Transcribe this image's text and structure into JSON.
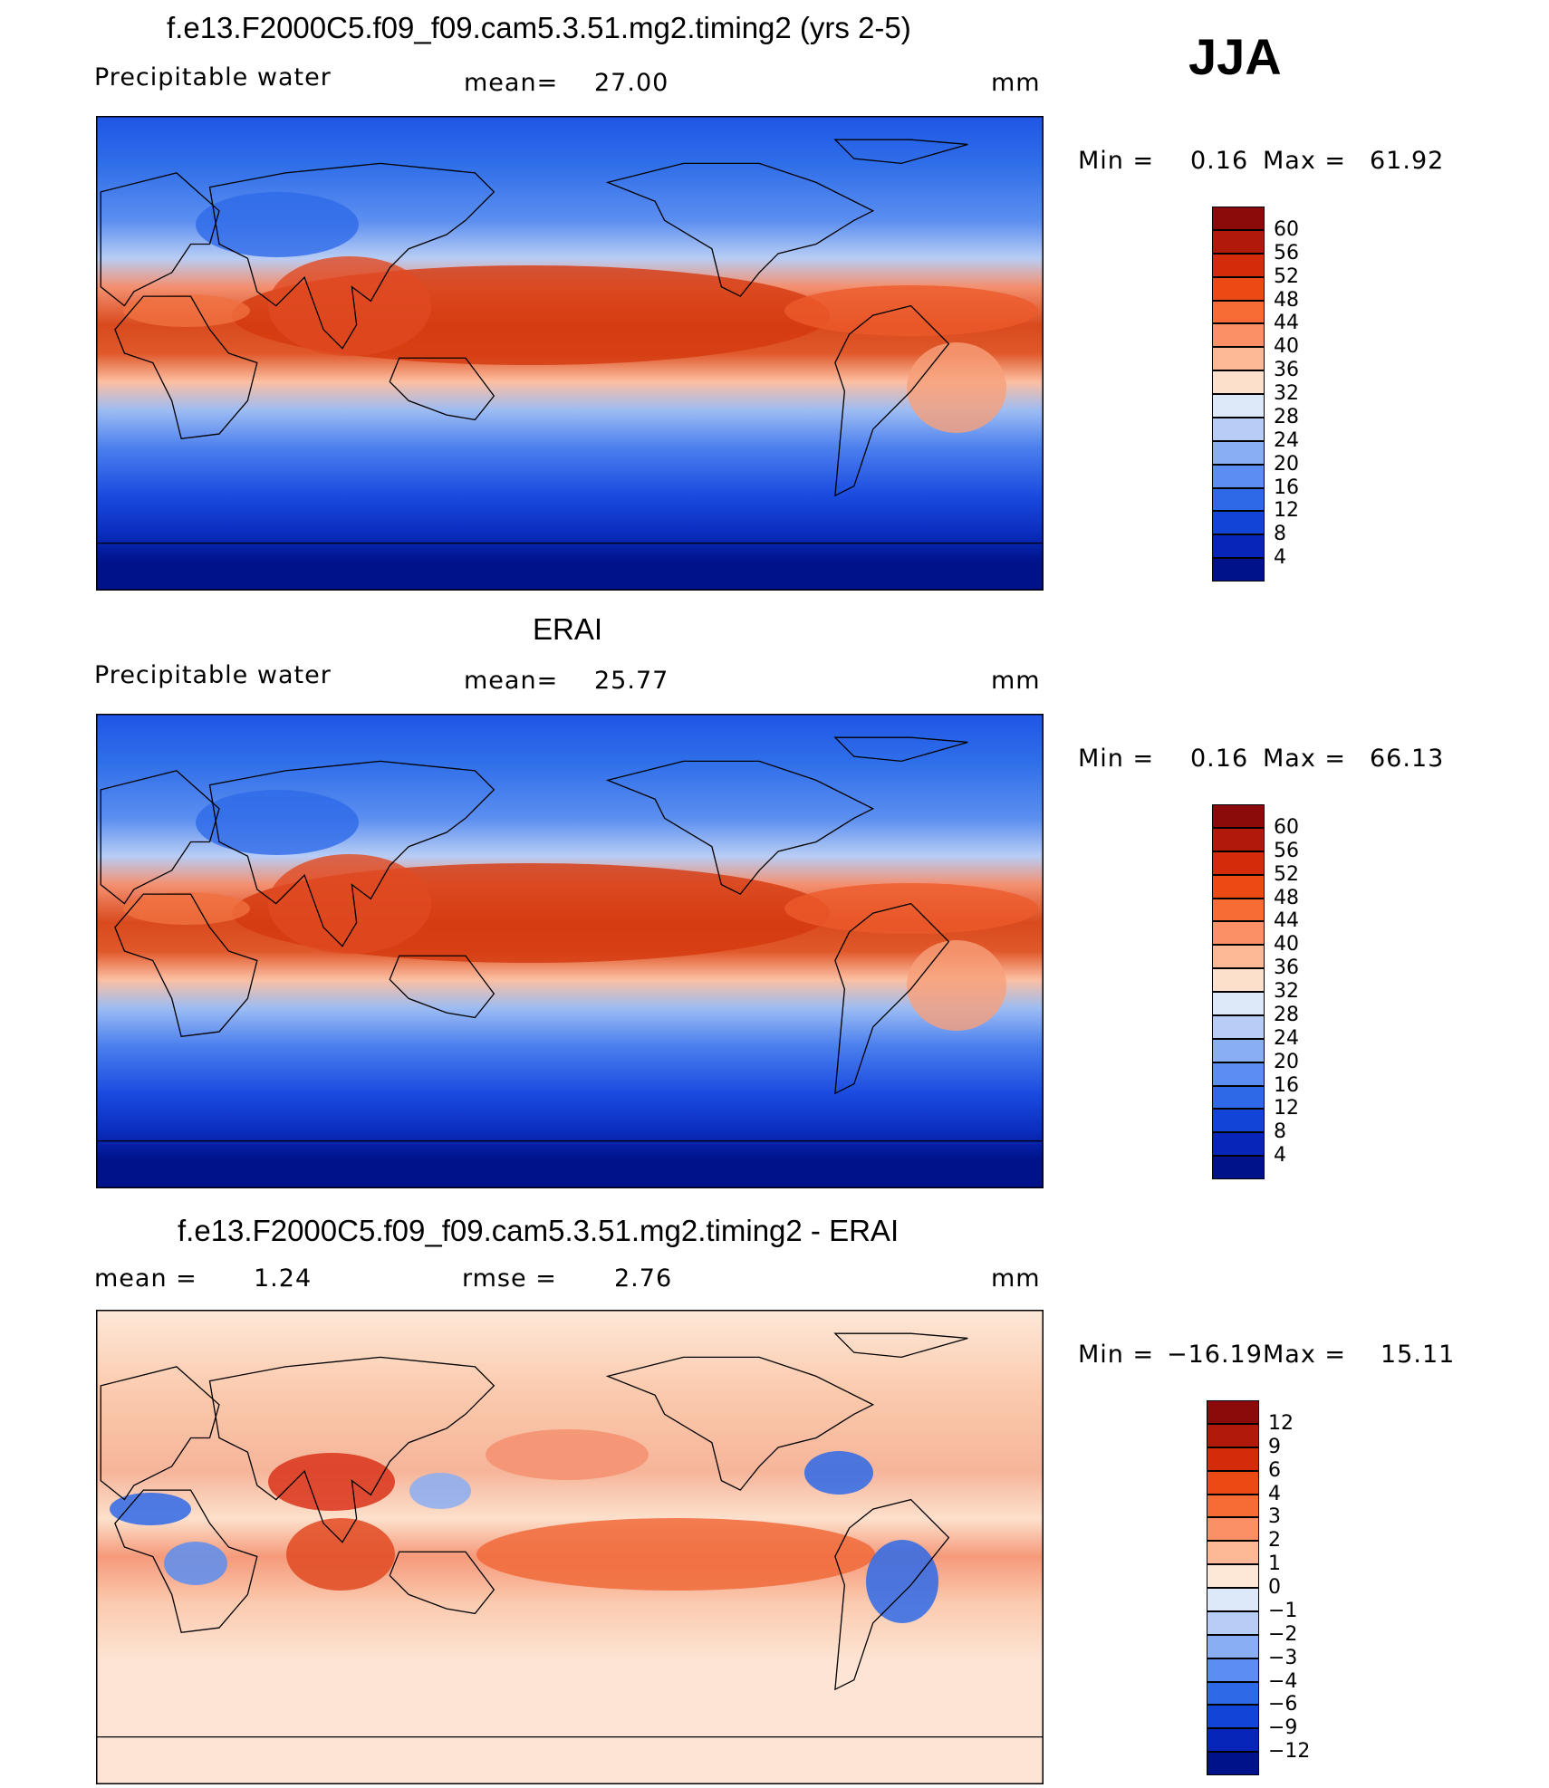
{
  "season": "JJA",
  "panels": [
    {
      "title": "f.e13.F2000C5.f09_f09.cam5.3.51.mg2.timing2 (yrs 2-5)",
      "left_label": "Precipitable  water",
      "mid_label": "mean=",
      "mid_value": "27.00",
      "units": "mm",
      "min_label": "Min  =",
      "min_value": "0.16",
      "max_label": "Max  =",
      "max_value": "61.92",
      "levels": [
        "60",
        "56",
        "52",
        "48",
        "44",
        "40",
        "36",
        "32",
        "28",
        "24",
        "20",
        "16",
        "12",
        "8",
        "4"
      ],
      "colors": [
        "#8b0a0a",
        "#b11a0a",
        "#d42c0a",
        "#ec4a14",
        "#f76c34",
        "#fb9066",
        "#fdb896",
        "#fde0cc",
        "#dde8f8",
        "#b8cdf5",
        "#8aaef2",
        "#5b8ef0",
        "#2e6ae8",
        "#1344d8",
        "#0725b8",
        "#00128a"
      ],
      "map_style": "abs"
    },
    {
      "title": "ERAI",
      "left_label": "Precipitable  water",
      "mid_label": "mean=",
      "mid_value": "25.77",
      "units": "mm",
      "min_label": "Min  =",
      "min_value": "0.16",
      "max_label": "Max  =",
      "max_value": "66.13",
      "levels": [
        "60",
        "56",
        "52",
        "48",
        "44",
        "40",
        "36",
        "32",
        "28",
        "24",
        "20",
        "16",
        "12",
        "8",
        "4"
      ],
      "colors": [
        "#8b0a0a",
        "#b11a0a",
        "#d42c0a",
        "#ec4a14",
        "#f76c34",
        "#fb9066",
        "#fdb896",
        "#fde0cc",
        "#dde8f8",
        "#b8cdf5",
        "#8aaef2",
        "#5b8ef0",
        "#2e6ae8",
        "#1344d8",
        "#0725b8",
        "#00128a"
      ],
      "map_style": "abs"
    },
    {
      "title": "f.e13.F2000C5.f09_f09.cam5.3.51.mg2.timing2 - ERAI",
      "left_label": "mean  =",
      "left_value": "1.24",
      "mid_label": "rmse  =",
      "mid_value": "2.76",
      "units": "mm",
      "min_label": "Min  =",
      "min_value": "−16.19",
      "max_label": "Max  =",
      "max_value": "15.11",
      "levels": [
        "12",
        "9",
        "6",
        "4",
        "3",
        "2",
        "1",
        "0",
        "−1",
        "−2",
        "−3",
        "−4",
        "−6",
        "−9",
        "−12"
      ],
      "colors": [
        "#8b0a0a",
        "#b11a0a",
        "#d42c0a",
        "#ec4a14",
        "#f76c34",
        "#fb9066",
        "#fdb896",
        "#fde8d8",
        "#dde8f8",
        "#b8cdf5",
        "#8aaef2",
        "#5b8ef0",
        "#2e6ae8",
        "#1344d8",
        "#0725b8",
        "#00128a"
      ],
      "map_style": "diff"
    }
  ]
}
